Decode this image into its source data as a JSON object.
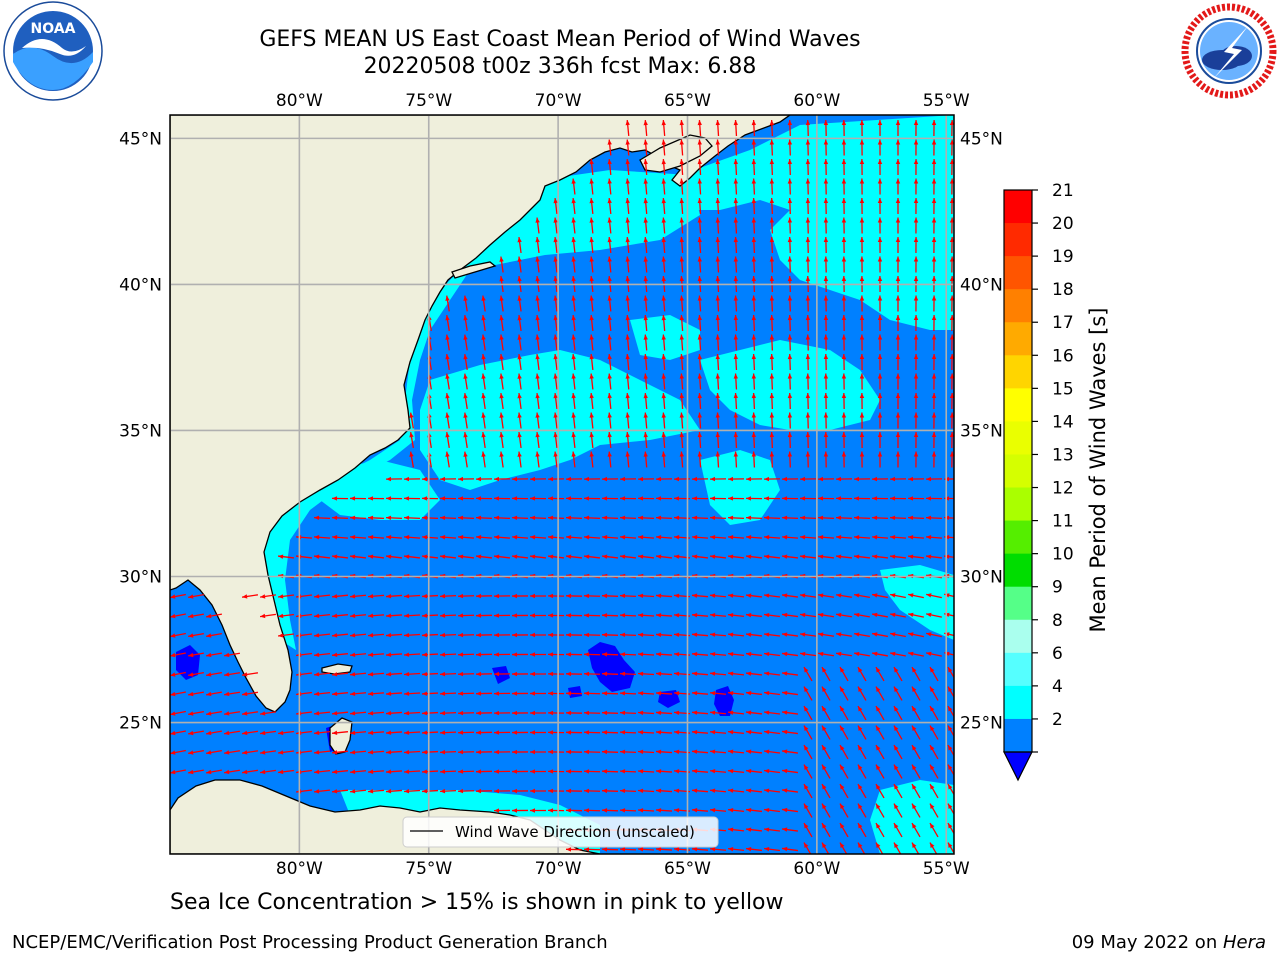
{
  "title": {
    "line1": "GEFS MEAN US East Coast Mean Period of Wind Waves",
    "line2": "20220508 t00z 336h fcst   Max: 6.88"
  },
  "logos": {
    "left": "noaa-logo",
    "left_text": "NOAA",
    "right": "nws-logo",
    "right_text": "NATIONAL WEATHER SERVICE"
  },
  "map": {
    "lon_ticks_top": [
      "80°W",
      "75°W",
      "70°W",
      "65°W",
      "60°W",
      "55°W"
    ],
    "lon_ticks_bottom": [
      "80°W",
      "75°W",
      "70°W",
      "65°W",
      "60°W",
      "55°W"
    ],
    "lat_ticks_left": [
      "45°N",
      "40°N",
      "35°N",
      "30°N",
      "25°N"
    ],
    "lat_ticks_right": [
      "45°N",
      "40°N",
      "35°N",
      "30°N",
      "25°N"
    ],
    "lon_values": [
      -80,
      -75,
      -70,
      -65,
      -60,
      -55
    ],
    "lat_values": [
      45,
      40,
      35,
      30,
      25
    ],
    "extent": {
      "lon_min": -85,
      "lon_max": -54.7,
      "lat_min": 20.5,
      "lat_max": 45.8
    },
    "legend_label": "Wind Wave Direction (unscaled)",
    "colors": {
      "land": "#efefdc",
      "ocean_2_4": "#0080ff",
      "ocean_4_6": "#00ffff",
      "ocean_lt2": "#0000ff",
      "arrow": "#ff0000",
      "grid": "#b0b0b0"
    }
  },
  "colorbar": {
    "title": "Mean Period of Wind Waves [s]",
    "ticks": [
      "21",
      "20",
      "19",
      "18",
      "17",
      "16",
      "15",
      "14",
      "13",
      "12",
      "11",
      "10",
      "9",
      "8",
      "6",
      "4",
      "2"
    ],
    "colors": [
      "#ff0000",
      "#ff2a00",
      "#ff5500",
      "#ff8000",
      "#ffaa00",
      "#ffd500",
      "#ffff00",
      "#eaff00",
      "#d5ff00",
      "#aaff00",
      "#55ee00",
      "#00dd00",
      "#55ff88",
      "#aaffee",
      "#55ffff",
      "#00ffff",
      "#0080ff"
    ],
    "under_color": "#0000ff"
  },
  "note": "Sea Ice Concentration > 15% is shown in pink to yellow",
  "footer": {
    "left": "NCEP/EMC/Verification Post Processing Product Generation Branch",
    "date": "09 May 2022 on ",
    "machine": "Hera"
  }
}
